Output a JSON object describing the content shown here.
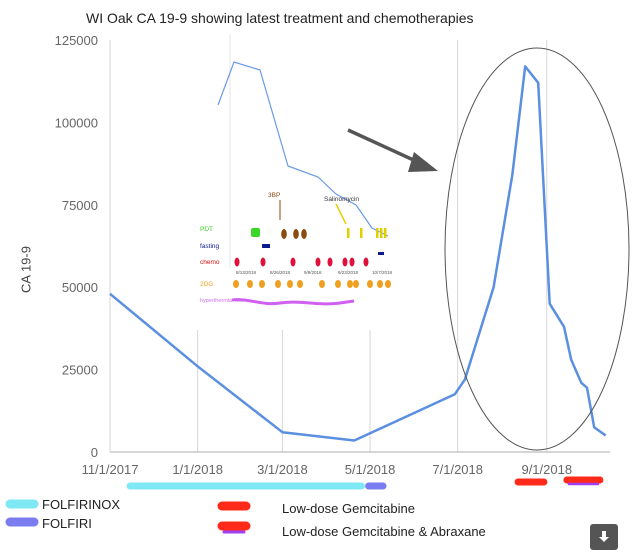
{
  "chart_data": {
    "type": "line",
    "title": "WI Oak CA 19-9 showing latest treatment and chemotherapies",
    "ylabel": "CA 19-9",
    "xlabel": "",
    "ylim": [
      0,
      125000
    ],
    "yticks": [
      0,
      25000,
      50000,
      75000,
      100000,
      125000
    ],
    "xticks": [
      "11/1/2017",
      "1/1/2018",
      "3/1/2018",
      "5/1/2018",
      "7/1/2018",
      "9/1/2018"
    ],
    "x_range": [
      "2017-11-01",
      "2018-10-15"
    ],
    "grid": "vertical",
    "series": [
      {
        "color": "#5b8fe0",
        "points": [
          {
            "date": "2017-11-01",
            "value": 48000
          },
          {
            "date": "2018-01-01",
            "value": 26000
          },
          {
            "date": "2018-03-01",
            "value": 6000
          },
          {
            "date": "2018-04-20",
            "value": 3500
          },
          {
            "date": "2018-06-29",
            "value": 17500
          },
          {
            "date": "2018-07-06",
            "value": 22000
          },
          {
            "date": "2018-07-26",
            "value": 50000
          },
          {
            "date": "2018-08-08",
            "value": 84000
          },
          {
            "date": "2018-08-17",
            "value": 117000
          },
          {
            "date": "2018-08-26",
            "value": 112000
          },
          {
            "date": "2018-09-03",
            "value": 45000
          },
          {
            "date": "2018-09-13",
            "value": 38000
          },
          {
            "date": "2018-09-18",
            "value": 28000
          },
          {
            "date": "2018-09-25",
            "value": 21000
          },
          {
            "date": "2018-09-29",
            "value": 19500
          },
          {
            "date": "2018-10-04",
            "value": 7500
          },
          {
            "date": "2018-10-12",
            "value": 5000
          }
        ]
      }
    ],
    "treatment_bars": [
      {
        "label": "FOLFIRINOX",
        "color": "#7fe8f5",
        "start": "2017-11-15",
        "end": "2018-04-25"
      },
      {
        "label": "FOLFIRI",
        "color": "#7a7cf0",
        "start": "2018-04-30",
        "end": "2018-05-10"
      },
      {
        "label": "Low-dose Gemcitabine",
        "color": "#ff2a1a",
        "start": "2018-08-12",
        "end": "2018-08-30"
      },
      {
        "label": "Low-dose Gemcitabine & Abraxane",
        "color": "#ff2a1a",
        "accent": "#a040f0",
        "start": "2018-09-15",
        "end": "2018-10-08"
      }
    ],
    "legend": [
      {
        "label": "FOLFIRINOX",
        "color": "#7fe8f5"
      },
      {
        "label": "FOLFIRI",
        "color": "#7a7cf0"
      },
      {
        "label": "Low-dose Gemcitabine",
        "color": "#ff2a1a"
      },
      {
        "label": "Low-dose Gemcitabine & Abraxane",
        "color": "#ff2a1a",
        "accent": "#a040f0"
      }
    ],
    "annotations": [
      {
        "type": "ellipse",
        "around": "peak 2018-07 to 2018-10"
      },
      {
        "type": "arrow",
        "pointing": "from inset to peak"
      }
    ],
    "inset": {
      "rows": [
        "PDT",
        "fasting",
        "chemo",
        "2DG",
        "hyperthermia+Mx"
      ],
      "labels": [
        "3BP",
        "Salinomycin"
      ],
      "dates": [
        "8/13/2018",
        "8/26/2018",
        "9/9/2018",
        "9/23/2018",
        "10/7/2018"
      ]
    }
  }
}
